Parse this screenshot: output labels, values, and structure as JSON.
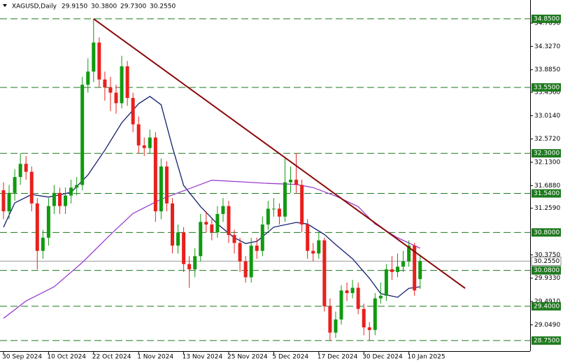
{
  "chart_data": {
    "type": "candlestick",
    "symbol": "XAGUSD,Daily",
    "header_values": [
      "29.9150",
      "30.3800",
      "29.7300",
      "30.2550"
    ],
    "categories": [
      "30 Sep 2024",
      null,
      null,
      null,
      null,
      null,
      null,
      null,
      "10 Oct 2024",
      null,
      null,
      null,
      null,
      null,
      null,
      null,
      "22 Oct 2024",
      null,
      null,
      null,
      null,
      null,
      null,
      null,
      "1 Nov 2024",
      null,
      null,
      null,
      null,
      null,
      null,
      null,
      "13 Nov 2024",
      null,
      null,
      null,
      null,
      null,
      null,
      null,
      "25 Nov 2024",
      null,
      null,
      null,
      null,
      null,
      null,
      null,
      "5 Dec 2024",
      null,
      null,
      null,
      null,
      null,
      null,
      null,
      "17 Dec 2024",
      null,
      null,
      null,
      null,
      null,
      null,
      null,
      "30 Dec 2024",
      null,
      null,
      null,
      null,
      null,
      null,
      null,
      "10 Jan 2025",
      null,
      null
    ],
    "ohlc": [
      [
        31.6,
        31.75,
        31.05,
        31.2
      ],
      [
        31.2,
        31.7,
        31.05,
        31.55
      ],
      [
        31.55,
        32.0,
        31.4,
        31.85
      ],
      [
        31.85,
        32.3,
        31.7,
        32.1
      ],
      [
        32.1,
        32.25,
        31.8,
        31.95
      ],
      [
        31.95,
        32.05,
        31.2,
        31.35
      ],
      [
        31.35,
        31.45,
        30.1,
        30.45
      ],
      [
        30.45,
        30.85,
        30.3,
        30.7
      ],
      [
        30.7,
        31.45,
        30.55,
        31.3
      ],
      [
        31.3,
        31.7,
        31.15,
        31.55
      ],
      [
        31.55,
        31.65,
        31.15,
        31.3
      ],
      [
        31.3,
        31.65,
        31.15,
        31.5
      ],
      [
        31.5,
        31.8,
        31.35,
        31.65
      ],
      [
        31.65,
        31.85,
        31.5,
        31.7
      ],
      [
        31.7,
        33.75,
        31.6,
        33.6
      ],
      [
        33.6,
        34.1,
        33.45,
        33.85
      ],
      [
        33.85,
        34.85,
        33.65,
        34.4
      ],
      [
        34.4,
        34.5,
        33.55,
        33.7
      ],
      [
        33.7,
        33.85,
        33.3,
        33.55
      ],
      [
        33.55,
        33.75,
        33.1,
        33.45
      ],
      [
        33.45,
        33.6,
        33.05,
        33.25
      ],
      [
        33.25,
        34.15,
        33.15,
        33.95
      ],
      [
        33.95,
        34.05,
        33.2,
        33.35
      ],
      [
        33.35,
        33.45,
        32.7,
        32.85
      ],
      [
        32.85,
        33.0,
        32.3,
        32.45
      ],
      [
        32.45,
        32.6,
        32.25,
        32.4
      ],
      [
        32.4,
        32.75,
        32.3,
        32.6
      ],
      [
        32.6,
        32.7,
        31.0,
        31.2
      ],
      [
        31.2,
        32.2,
        31.05,
        32.05
      ],
      [
        32.05,
        32.15,
        31.2,
        31.35
      ],
      [
        31.35,
        31.45,
        30.4,
        30.55
      ],
      [
        30.55,
        30.95,
        30.4,
        30.8
      ],
      [
        30.8,
        30.9,
        30.05,
        30.2
      ],
      [
        30.2,
        30.35,
        29.75,
        30.1
      ],
      [
        30.1,
        30.5,
        29.95,
        30.35
      ],
      [
        30.35,
        31.15,
        30.25,
        31.0
      ],
      [
        31.0,
        31.2,
        30.8,
        30.95
      ],
      [
        30.95,
        31.05,
        30.65,
        30.8
      ],
      [
        30.8,
        31.3,
        30.7,
        31.15
      ],
      [
        31.15,
        31.45,
        31.0,
        31.3
      ],
      [
        31.3,
        31.4,
        30.6,
        30.75
      ],
      [
        30.75,
        30.85,
        30.4,
        30.6
      ],
      [
        30.6,
        30.7,
        30.05,
        30.25
      ],
      [
        30.25,
        30.35,
        29.85,
        29.95
      ],
      [
        29.95,
        30.7,
        29.85,
        30.55
      ],
      [
        30.55,
        30.7,
        30.3,
        30.45
      ],
      [
        30.45,
        31.1,
        30.35,
        30.95
      ],
      [
        30.95,
        31.4,
        30.85,
        31.25
      ],
      [
        31.25,
        31.45,
        31.1,
        31.25
      ],
      [
        31.25,
        31.35,
        30.95,
        31.1
      ],
      [
        31.1,
        32.2,
        31.0,
        31.75
      ],
      [
        31.75,
        32.05,
        31.55,
        31.8
      ],
      [
        31.8,
        32.3,
        31.55,
        31.7
      ],
      [
        31.7,
        31.8,
        30.8,
        30.95
      ],
      [
        30.95,
        31.05,
        30.3,
        30.45
      ],
      [
        30.45,
        30.6,
        30.25,
        30.4
      ],
      [
        30.4,
        30.8,
        30.3,
        30.65
      ],
      [
        30.65,
        30.7,
        29.3,
        29.4
      ],
      [
        29.4,
        29.55,
        28.75,
        28.9
      ],
      [
        28.9,
        29.3,
        28.8,
        29.15
      ],
      [
        29.15,
        29.8,
        29.05,
        29.7
      ],
      [
        29.7,
        29.85,
        29.5,
        29.65
      ],
      [
        29.65,
        29.9,
        29.55,
        29.75
      ],
      [
        29.75,
        29.85,
        29.25,
        29.35
      ],
      [
        29.35,
        29.45,
        28.85,
        29.0
      ],
      [
        29.0,
        29.1,
        28.75,
        28.95
      ],
      [
        28.95,
        29.65,
        28.85,
        29.55
      ],
      [
        29.55,
        29.85,
        29.45,
        29.6
      ],
      [
        29.6,
        30.2,
        29.5,
        30.1
      ],
      [
        30.1,
        30.35,
        29.9,
        30.05
      ],
      [
        30.05,
        30.4,
        29.95,
        30.15
      ],
      [
        30.15,
        30.45,
        30.05,
        30.25
      ],
      [
        30.25,
        30.65,
        30.15,
        30.55
      ],
      [
        30.55,
        30.6,
        29.6,
        29.7
      ],
      [
        29.915,
        30.38,
        29.73,
        30.255
      ]
    ],
    "up_color": "#109a10",
    "down_color": "#e8201c",
    "lines": [
      {
        "color": "#14206e",
        "x": [
          0,
          2,
          5,
          8,
          12,
          15,
          18,
          21,
          24,
          26,
          28,
          30,
          32,
          35,
          38,
          41,
          43,
          45,
          48,
          52,
          54,
          57,
          59,
          62,
          65,
          67,
          70,
          72,
          74
        ],
        "values": [
          30.9,
          31.36,
          31.52,
          31.47,
          31.56,
          31.89,
          32.36,
          32.88,
          33.24,
          33.38,
          33.22,
          32.42,
          31.69,
          31.29,
          30.96,
          30.7,
          30.59,
          30.63,
          30.9,
          30.99,
          30.96,
          30.76,
          30.57,
          30.3,
          29.93,
          29.64,
          29.57,
          29.74,
          29.77
        ]
      },
      {
        "color": "#9b3fd0",
        "x": [
          0,
          4,
          9,
          14,
          19,
          23,
          28,
          33,
          37,
          42,
          47,
          52,
          55,
          59,
          63,
          66,
          70,
          74
        ],
        "values": [
          29.17,
          29.5,
          29.77,
          30.23,
          30.76,
          31.16,
          31.43,
          31.63,
          31.79,
          31.76,
          31.73,
          31.71,
          31.65,
          31.49,
          31.29,
          30.96,
          30.7,
          30.5
        ]
      }
    ],
    "trendline": {
      "color": "#8b0a0a",
      "x": [
        16,
        82
      ],
      "values": [
        34.85,
        29.74
      ]
    },
    "levels": [
      {
        "value": 34.85,
        "label": "34.8500"
      },
      {
        "value": 33.55,
        "label": "33.5500"
      },
      {
        "value": 32.3,
        "label": "32.3000"
      },
      {
        "value": 31.54,
        "label": "31.5400"
      },
      {
        "value": 30.8,
        "label": "30.8000"
      },
      {
        "value": 30.08,
        "label": "30.0800"
      },
      {
        "value": 29.4,
        "label": "29.4000"
      },
      {
        "value": 28.75,
        "label": "28.7500"
      }
    ],
    "level_color": "#1e7a1e",
    "price_line": {
      "value": 30.255,
      "label": "30.2550"
    },
    "ylim": [
      28.51,
      35.207
    ],
    "yticks": [
      {
        "value": 34.769,
        "label": "34.7690"
      },
      {
        "value": 34.327,
        "label": "34.3270"
      },
      {
        "value": 33.885,
        "label": "33.8850"
      },
      {
        "value": 33.456,
        "label": "33.4560"
      },
      {
        "value": 33.014,
        "label": "33.0140"
      },
      {
        "value": 32.572,
        "label": "32.5720"
      },
      {
        "value": 32.13,
        "label": "32.1300"
      },
      {
        "value": 31.688,
        "label": "31.6880"
      },
      {
        "value": 31.259,
        "label": "31.2590"
      },
      {
        "value": 30.375,
        "label": "30.3750"
      },
      {
        "value": 29.933,
        "label": "29.9330"
      },
      {
        "value": 29.491,
        "label": "29.4910"
      },
      {
        "value": 29.049,
        "label": "29.0490"
      }
    ]
  }
}
